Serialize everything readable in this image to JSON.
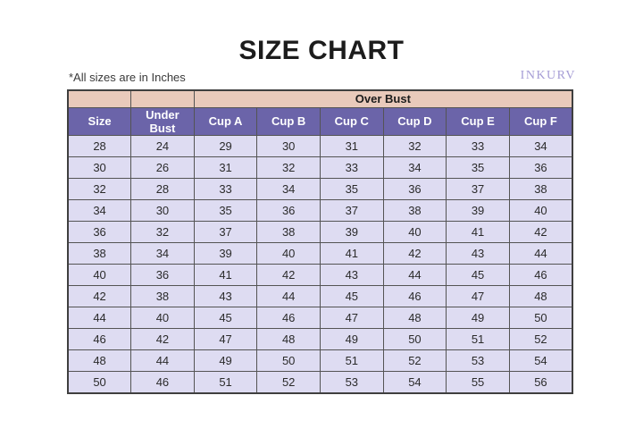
{
  "header": {
    "title": "SIZE CHART",
    "note": "*All sizes are in Inches",
    "brand": "INKURV"
  },
  "chart_data": {
    "type": "table",
    "title": "SIZE CHART",
    "note": "*All sizes are in Inches",
    "brand": "INKURV",
    "column_group": {
      "label": "Over Bust",
      "spans": [
        "Cup A",
        "Cup B",
        "Cup C",
        "Cup D",
        "Cup E",
        "Cup F"
      ]
    },
    "columns": [
      "Size",
      "Under Bust",
      "Cup A",
      "Cup B",
      "Cup C",
      "Cup D",
      "Cup E",
      "Cup F"
    ],
    "rows": [
      [
        28,
        24,
        29,
        30,
        31,
        32,
        33,
        34
      ],
      [
        30,
        26,
        31,
        32,
        33,
        34,
        35,
        36
      ],
      [
        32,
        28,
        33,
        34,
        35,
        36,
        37,
        38
      ],
      [
        34,
        30,
        35,
        36,
        37,
        38,
        39,
        40
      ],
      [
        36,
        32,
        37,
        38,
        39,
        40,
        41,
        42
      ],
      [
        38,
        34,
        39,
        40,
        41,
        42,
        43,
        44
      ],
      [
        40,
        36,
        41,
        42,
        43,
        44,
        45,
        46
      ],
      [
        42,
        38,
        43,
        44,
        45,
        46,
        47,
        48
      ],
      [
        44,
        40,
        45,
        46,
        47,
        48,
        49,
        50
      ],
      [
        46,
        42,
        47,
        48,
        49,
        50,
        51,
        52
      ],
      [
        48,
        44,
        49,
        50,
        51,
        52,
        53,
        54
      ],
      [
        50,
        46,
        51,
        52,
        53,
        54,
        55,
        56
      ]
    ]
  },
  "colors": {
    "over_bust_bg": "#e9cabb",
    "column_header_bg": "#6b64a9",
    "column_header_text": "#ffffff",
    "row_bg": "#dedcf2",
    "border": "#545454",
    "title_text": "#1c1c1c",
    "brand_text": "#a59cd5"
  }
}
